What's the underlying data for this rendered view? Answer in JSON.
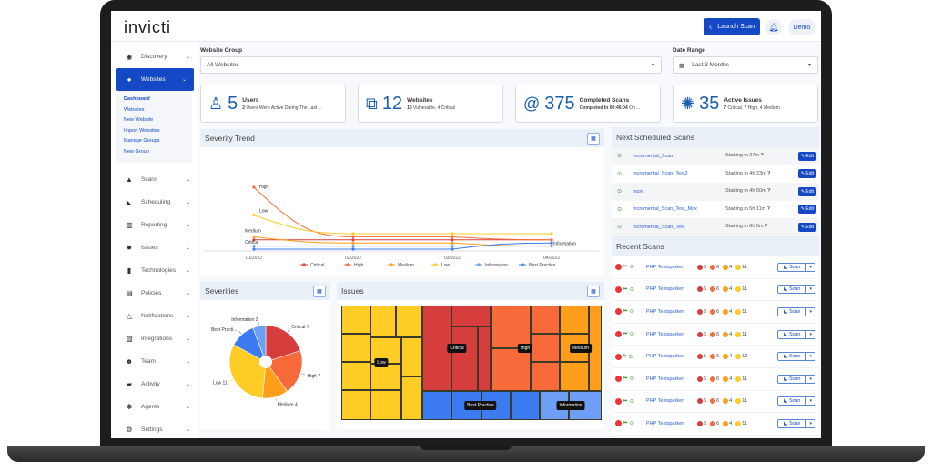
{
  "header": {
    "logo": "invicti",
    "launch_scan": "Launch Scan",
    "user": "Demo"
  },
  "sidebar": {
    "top": [
      {
        "label": "Discovery",
        "icon": "radar-icon"
      }
    ],
    "active": {
      "label": "Websites",
      "icon": "globe-icon"
    },
    "sub": [
      "Dashboard",
      "Websites",
      "New Website",
      "Import Websites",
      "Manage Groups",
      "New Group"
    ],
    "items": [
      {
        "label": "Scans"
      },
      {
        "label": "Scheduling"
      },
      {
        "label": "Reporting"
      },
      {
        "label": "Issues"
      },
      {
        "label": "Technologies"
      },
      {
        "label": "Policies"
      },
      {
        "label": "Notifications"
      },
      {
        "label": "Integrations"
      },
      {
        "label": "Team"
      },
      {
        "label": "Activity"
      },
      {
        "label": "Agents"
      },
      {
        "label": "Settings"
      }
    ]
  },
  "filters": {
    "website_group_label": "Website Group",
    "website_group_value": "All Websites",
    "date_range_label": "Date Range",
    "date_range_value": "Last 3 Months"
  },
  "stats": [
    {
      "num": "5",
      "title": "Users",
      "b": "2",
      "rest": " Users Were Active During The Last ..."
    },
    {
      "num": "12",
      "title": "Websites",
      "b": "10",
      "rest": " Vulnerable, 4 Critical"
    },
    {
      "num": "375",
      "title": "Completed Scans",
      "b": "Completed In 00:46:04",
      "rest": " On ..."
    },
    {
      "num": "35",
      "title": "Active Issues",
      "b": "7",
      "rest": " Critical, 7 High, 4 Medium"
    }
  ],
  "panels": {
    "trend": "Severity Trend",
    "severities": "Severities",
    "issues": "Issues",
    "next": "Next Scheduled Scans",
    "recent": "Recent Scans"
  },
  "colors": {
    "Critical": "#d63d3d",
    "High": "#f86a3a",
    "Medium": "#ff9e1b",
    "Low": "#fdcd25",
    "Information": "#6e9ff5",
    "Best Practice": "#3d7cf0"
  },
  "chart_data": [
    {
      "type": "line",
      "title": "Severity Trend",
      "categories": [
        "01/2022",
        "02/2022",
        "03/2022",
        "04/2022"
      ],
      "series": [
        {
          "name": "Critical",
          "values": [
            3,
            3,
            3,
            3
          ]
        },
        {
          "name": "High",
          "values": [
            20,
            4,
            4,
            3
          ]
        },
        {
          "name": "Medium",
          "values": [
            4,
            2,
            2,
            1
          ]
        },
        {
          "name": "Low",
          "values": [
            11,
            5,
            5,
            5
          ]
        },
        {
          "name": "Information",
          "values": [
            1,
            1,
            1,
            1
          ]
        },
        {
          "name": "Best Practice",
          "values": [
            0,
            0,
            0,
            2
          ]
        }
      ],
      "point_labels": [
        {
          "series": "High",
          "text": "High"
        },
        {
          "series": "Low",
          "text": "Low"
        },
        {
          "series": "Medium",
          "text": "Medium"
        },
        {
          "series": "Critical",
          "text": "Critical"
        },
        {
          "series": "Information",
          "text": "Information"
        }
      ],
      "legend": "bottom"
    },
    {
      "type": "pie",
      "title": "Severities",
      "slices": [
        {
          "name": "Critical",
          "value": 7,
          "label": "Critical 7"
        },
        {
          "name": "High",
          "value": 7,
          "label": "High 7"
        },
        {
          "name": "Medium",
          "value": 4,
          "label": "Medium 4"
        },
        {
          "name": "Low",
          "value": 11,
          "label": "Low 11"
        },
        {
          "name": "Best Practice",
          "value": 4,
          "label": "Best Practi..."
        },
        {
          "name": "Information",
          "value": 2,
          "label": "Information 2"
        }
      ]
    },
    {
      "type": "treemap",
      "title": "Issues",
      "labels": [
        "Low",
        "Critical",
        "High",
        "Medium",
        "Best Practice",
        "Information"
      ]
    }
  ],
  "scheduled": [
    {
      "name": "Incremental_Scan",
      "start": "Starting in 27m"
    },
    {
      "name": "Incremental_Scan_Test2",
      "start": "Starting in 4h 23m"
    },
    {
      "name": "Incre",
      "start": "Starting in 4h 50m"
    },
    {
      "name": "Incremental_Scan_Test_Max",
      "start": "Starting in 5h 11m"
    },
    {
      "name": "Incremental_Scan_Test",
      "start": "Starting in 6h 5m"
    }
  ],
  "edit_label": "Edit",
  "scan_label": "Scan",
  "recent": [
    {
      "name": "PHP Testsparker",
      "c": "6",
      "h": "6",
      "m": "4",
      "l": "11"
    },
    {
      "name": "PHP Testsparker",
      "c": "6",
      "h": "6",
      "m": "4",
      "l": "11"
    },
    {
      "name": "PHP Testsparker",
      "c": "6",
      "h": "6",
      "m": "4",
      "l": "11"
    },
    {
      "name": "PHP Testsparker",
      "c": "6",
      "h": "6",
      "m": "4",
      "l": "11"
    },
    {
      "name": "PHP Testsparker",
      "c": "5",
      "h": "6",
      "m": "4",
      "l": "12"
    },
    {
      "name": "PHP Testsparker",
      "c": "6",
      "h": "6",
      "m": "4",
      "l": "11"
    },
    {
      "name": "PHP Testsparker",
      "c": "6",
      "h": "6",
      "m": "4",
      "l": "11"
    },
    {
      "name": "PHP Testsparker",
      "c": "6",
      "h": "6",
      "m": "4",
      "l": "11"
    }
  ]
}
